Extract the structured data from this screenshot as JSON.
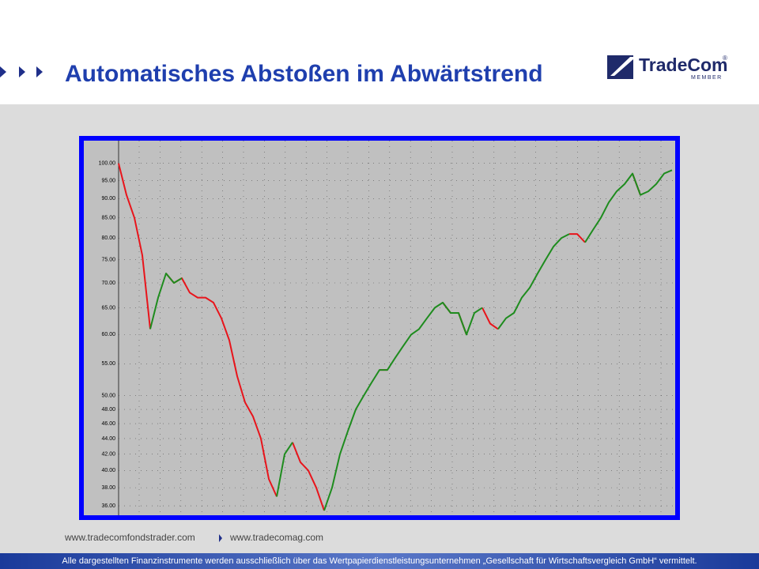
{
  "slide": {
    "title": "Automatisches Abstoßen im Abwärtstrend",
    "logo": {
      "name": "TradeCom",
      "mark": "®",
      "sub": "MEMBER"
    },
    "links": [
      "www.tradecomfondstrader.com",
      "www.tradecomag.com"
    ],
    "footer": "Alle dargestellten Finanzinstrumente werden ausschließlich über das Wertpapierdienstleistungsunternehmen „Gesellschaft für Wirtschaftsvergleich GmbH“ vermittelt."
  },
  "chart_data": {
    "type": "line",
    "log_y": true,
    "grid": true,
    "categories": [
      null,
      null,
      null,
      null,
      null,
      null,
      null,
      null,
      null,
      null,
      null,
      null,
      null,
      null,
      null,
      null,
      null,
      null,
      null,
      null,
      null,
      null,
      null,
      null,
      null,
      null,
      null,
      null,
      null,
      null,
      null,
      null,
      null,
      null,
      null,
      null,
      null,
      null,
      null,
      null,
      null,
      null,
      null,
      null,
      null,
      null,
      null,
      null,
      null,
      null,
      null,
      null,
      null,
      null,
      null,
      null,
      null,
      null,
      null,
      null,
      null,
      null,
      null,
      null,
      null,
      null,
      null,
      null,
      null,
      null,
      null
    ],
    "series": [
      {
        "color": "#e8141b",
        "values": [
          100,
          91,
          85,
          76,
          61,
          null,
          72,
          70,
          71,
          68,
          67,
          67,
          66,
          63,
          59,
          53,
          49,
          47,
          44,
          39,
          37,
          null,
          43.5,
          41,
          40,
          38,
          35.5,
          null,
          null,
          null,
          null,
          null,
          null,
          54,
          54,
          null,
          null,
          null,
          null,
          null,
          null,
          66,
          64,
          64,
          60,
          null,
          65,
          62,
          61,
          null,
          null,
          null,
          null,
          null,
          null,
          null,
          null,
          81,
          81,
          79,
          null,
          null,
          null,
          null,
          null,
          97,
          91,
          null,
          null,
          null,
          null
        ]
      },
      {
        "color": "#1e8c1e",
        "values": [
          null,
          null,
          null,
          null,
          61,
          67,
          72,
          70,
          71,
          null,
          null,
          null,
          null,
          null,
          null,
          null,
          null,
          null,
          null,
          null,
          37,
          42,
          43.5,
          null,
          null,
          null,
          35.5,
          38,
          42,
          45,
          48,
          50,
          52,
          54,
          54,
          56,
          58,
          60,
          61,
          63,
          65,
          66,
          64,
          64,
          60,
          64,
          65,
          null,
          61,
          63,
          64,
          67,
          69,
          72,
          75,
          78,
          80,
          81,
          null,
          79,
          82,
          85,
          89,
          92,
          94,
          97,
          91,
          92,
          94,
          97,
          98
        ]
      }
    ],
    "ylim": [
      35,
      107
    ],
    "yticks": [
      {
        "value": 100,
        "label": "100.00"
      },
      {
        "value": 95,
        "label": "95.00"
      },
      {
        "value": 90,
        "label": "90.00"
      },
      {
        "value": 85,
        "label": "85.00"
      },
      {
        "value": 80,
        "label": "80.00"
      },
      {
        "value": 75,
        "label": "75.00"
      },
      {
        "value": 70,
        "label": "70.00"
      },
      {
        "value": 65,
        "label": "65.00"
      },
      {
        "value": 60,
        "label": "60.00"
      },
      {
        "value": 55,
        "label": "55.00"
      },
      {
        "value": 50,
        "label": "50.00"
      },
      {
        "value": 48,
        "label": "48.00"
      },
      {
        "value": 46,
        "label": "46.00"
      },
      {
        "value": 44,
        "label": "44.00"
      },
      {
        "value": 42,
        "label": "42.00"
      },
      {
        "value": 40,
        "label": "40.00"
      },
      {
        "value": 38,
        "label": "38.00"
      },
      {
        "value": 36,
        "label": "36.00"
      }
    ]
  }
}
